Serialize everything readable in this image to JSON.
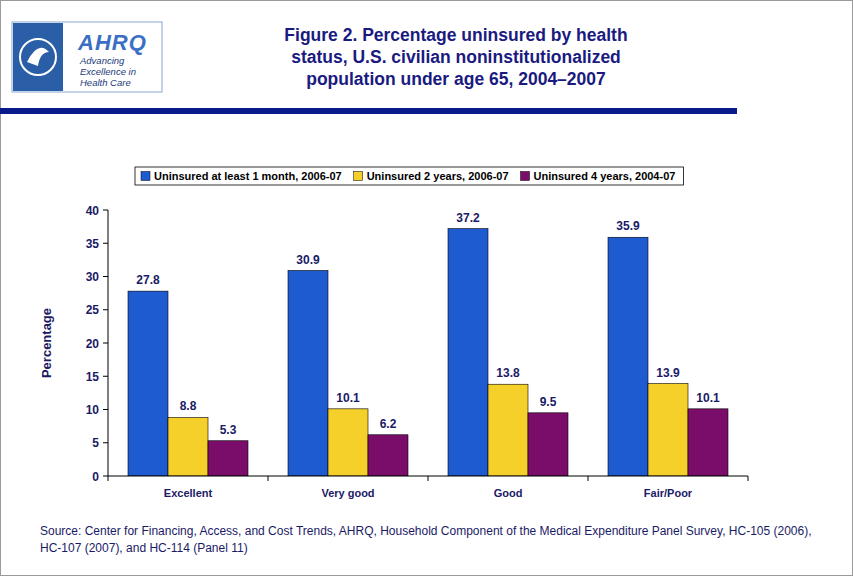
{
  "logo": {
    "name": "AHRQ",
    "tagline": "Advancing Excellence in Health Care"
  },
  "chart_data": {
    "type": "bar",
    "title": "Figure 2. Percentage uninsured by health status, U.S. civilian noninstitutionalized population under age 65, 2004–2007",
    "y_label": "Percentage",
    "categories": [
      "Excellent",
      "Very good",
      "Good",
      "Fair/Poor"
    ],
    "series": [
      {
        "name": "Uninsured at least 1 month, 2006-07",
        "color": "#1f5bd0",
        "values": [
          27.8,
          30.9,
          37.2,
          35.9
        ]
      },
      {
        "name": "Uninsured 2 years, 2006-07",
        "color": "#f5cf2a",
        "values": [
          8.8,
          10.1,
          13.8,
          13.9
        ]
      },
      {
        "name": "Uninsured 4 years, 2004-07",
        "color": "#7b0d6a",
        "values": [
          5.3,
          6.2,
          9.5,
          10.1
        ]
      }
    ],
    "ylim": [
      0,
      40
    ],
    "yticks": [
      0,
      5,
      10,
      15,
      20,
      25,
      30,
      35,
      40
    ],
    "grid": false,
    "legend": "top",
    "data_labels": true,
    "annotations": [
      "Source: Center for Financing, Access, and Cost Trends, AHRQ, Household Component of the Medical Expenditure Panel Survey, HC-105 (2006), HC-107 (2007), and HC-114 (Panel 11)"
    ]
  }
}
